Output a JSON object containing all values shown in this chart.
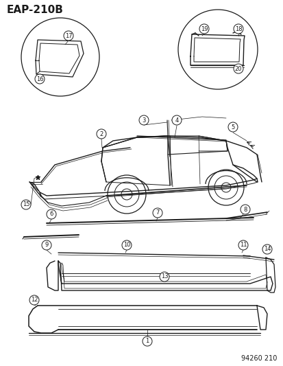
{
  "title": "EAP-210B",
  "catalog_number": "94260 210",
  "bg_color": "#ffffff",
  "line_color": "#1a1a1a",
  "title_fontsize": 11,
  "figsize": [
    4.14,
    5.33
  ],
  "dpi": 100
}
